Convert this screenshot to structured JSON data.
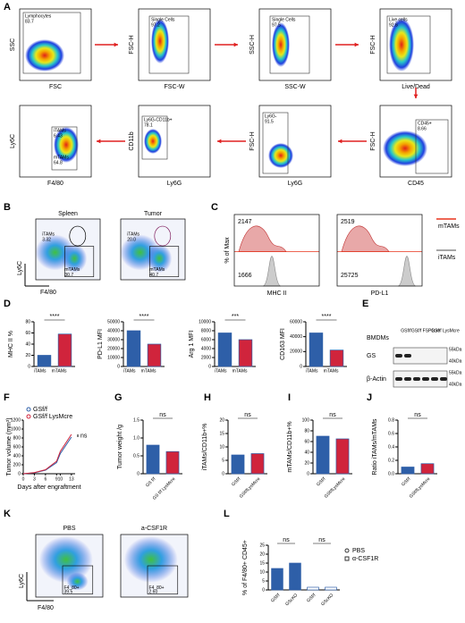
{
  "panels": [
    "A",
    "B",
    "C",
    "D",
    "E",
    "F",
    "G",
    "H",
    "I",
    "J",
    "K",
    "L"
  ],
  "flow_a": [
    {
      "x_label": "FSC",
      "y_label": "SSC",
      "gates": [
        {
          "name": "Lymphocytes",
          "value": "83.7"
        }
      ]
    },
    {
      "x_label": "FSC-W",
      "y_label": "FSC-H",
      "gates": [
        {
          "name": "Single Cells",
          "value": "97.2"
        }
      ]
    },
    {
      "x_label": "SSC-W",
      "y_label": "SSC-H",
      "gates": [
        {
          "name": "Single Cells",
          "value": "97.5"
        }
      ]
    },
    {
      "x_label": "Live/Dead",
      "y_label": "FSC-H",
      "gates": [
        {
          "name": "Live cells",
          "value": "92.6"
        }
      ]
    },
    {
      "x_label": "CD45",
      "y_label": "FSC-H",
      "gates": [
        {
          "name": "CD45+",
          "value": "8.66"
        }
      ]
    },
    {
      "x_label": "Ly6G",
      "y_label": "FSC-H",
      "gates": [
        {
          "name": "Ly6G-",
          "value": "91.5"
        }
      ]
    },
    {
      "x_label": "Ly6G",
      "y_label": "CD11b",
      "gates": [
        {
          "name": "Ly6G-CD11b+",
          "value": "78.1"
        }
      ]
    },
    {
      "x_label": "F4/80",
      "y_label": "Ly6C",
      "gates": [
        {
          "name": "iTAMs",
          "value": "6.43"
        },
        {
          "name": "mTAMs",
          "value": "64.8"
        }
      ]
    }
  ],
  "flow_b": {
    "x_label": "F4/80",
    "y_label": "Ly6C",
    "plots": [
      {
        "title": "Spleen",
        "gates": [
          {
            "name": "iTAMs",
            "value": "3.32"
          },
          {
            "name": "mTAMs",
            "value": "30.7"
          }
        ]
      },
      {
        "title": "Tumor",
        "gates": [
          {
            "name": "iTAMs",
            "value": "20.0"
          },
          {
            "name": "mTAMs",
            "value": "40.7"
          }
        ]
      }
    ]
  },
  "histograms": {
    "y_label": "% of Max",
    "legend": [
      {
        "name": "mTAMs",
        "color": "#e8341c"
      },
      {
        "name": "iTAMs",
        "color": "#888888"
      }
    ],
    "plots": [
      {
        "x_label": "MHC II",
        "top_value": "2147",
        "bottom_value": "1666"
      },
      {
        "x_label": "PD-L1",
        "top_value": "2519",
        "bottom_value": "25725"
      }
    ]
  },
  "bar_charts": [
    {
      "type": "bar",
      "y_label": "MHC II %",
      "categories": [
        "iTAMs",
        "mTAMs"
      ],
      "values": [
        20,
        58
      ],
      "colors": [
        "#2e5fa8",
        "#d0243c"
      ],
      "ylim": [
        0,
        80
      ],
      "yticks": [
        0,
        20,
        40,
        60,
        80
      ],
      "significance": [
        "****"
      ]
    },
    {
      "type": "bar",
      "y_label": "PD-L1 MFI",
      "categories": [
        "iTAMs",
        "mTAMs"
      ],
      "values": [
        40000,
        25000
      ],
      "colors": [
        "#2e5fa8",
        "#d0243c"
      ],
      "ylim": [
        0,
        50000
      ],
      "yticks": [
        0,
        10000,
        20000,
        30000,
        40000,
        50000
      ],
      "significance": [
        "****"
      ]
    },
    {
      "type": "bar",
      "y_label": "Arg 1 MFI",
      "categories": [
        "iTAMs",
        "mTAMs"
      ],
      "values": [
        7500,
        6000
      ],
      "colors": [
        "#2e5fa8",
        "#d0243c"
      ],
      "ylim": [
        0,
        10000
      ],
      "yticks": [
        0,
        2000,
        4000,
        6000,
        8000,
        10000
      ],
      "significance": [
        "***"
      ]
    },
    {
      "type": "bar",
      "y_label": "CD163 MFI",
      "categories": [
        "iTAMs",
        "mTAMs"
      ],
      "values": [
        45000,
        22000
      ],
      "colors": [
        "#2e5fa8",
        "#d0243c"
      ],
      "ylim": [
        0,
        60000
      ],
      "yticks": [
        0,
        20000,
        40000,
        60000
      ],
      "significance": [
        "****"
      ]
    },
    {
      "type": "bar",
      "y_label": "Tumor weight /g",
      "categories": [
        "GS f/f",
        "GS f/f LysMcre"
      ],
      "values": [
        0.8,
        0.62
      ],
      "colors": [
        "#2e5fa8",
        "#d0243c"
      ],
      "ylim": [
        0,
        1.5
      ],
      "yticks": [
        0,
        0.5,
        {
          "value": 1,
          "label": "1.0"
        },
        1.5
      ],
      "significance": [
        "ns"
      ]
    },
    {
      "type": "bar",
      "y_label": "iTAMs/CD11b+%",
      "categories": [
        "GSf/f",
        "GSf/fLysMcre"
      ],
      "values": [
        7,
        7.5
      ],
      "colors": [
        "#2e5fa8",
        "#d0243c"
      ],
      "ylim": [
        0,
        20
      ],
      "yticks": [
        0,
        5,
        10,
        15,
        20
      ],
      "significance": [
        "ns"
      ]
    },
    {
      "type": "bar",
      "y_label": "mTAMs/CD11b+%",
      "categories": [
        "GSf/f",
        "GSf/fLysMcre"
      ],
      "values": [
        70,
        65
      ],
      "colors": [
        "#2e5fa8",
        "#d0243c"
      ],
      "ylim": [
        0,
        100
      ],
      "yticks": [
        0,
        20,
        40,
        60,
        80,
        100
      ],
      "significance": [
        "ns"
      ]
    },
    {
      "type": "bar",
      "y_label": "Ratio iTAMs/mTAMs",
      "categories": [
        "GSf/f",
        "GSf/fLysMcre"
      ],
      "values": [
        0.1,
        0.15
      ],
      "colors": [
        "#2e5fa8",
        "#d0243c"
      ],
      "ylim": [
        0,
        0.8
      ],
      "yticks": [
        {
          "value": 0,
          "label": "0.0"
        },
        0.2,
        0.4,
        0.6,
        0.8
      ],
      "significance": [
        "ns"
      ]
    },
    {
      "type": "bar",
      "y_label": "% of F4/80+ CD45+",
      "categories": [
        "GSf/f",
        "GScKO",
        "GSf/f",
        "GScKO"
      ],
      "values": [
        12,
        15,
        1.5,
        1.5
      ],
      "colors": [
        "#2e5fa8",
        "#2e5fa8",
        "#ffffff",
        "#ffffff"
      ],
      "ylim": [
        0,
        25
      ],
      "yticks": [
        0,
        5,
        10,
        15,
        20,
        25
      ],
      "significance": [
        "ns",
        "ns"
      ],
      "legend": [
        "PBS",
        "α-CSF1R"
      ]
    }
  ],
  "line_chart": {
    "type": "line",
    "y_label": "Tumor volume (mm³)",
    "x_label": "Days after engraftment",
    "x": [
      0,
      3,
      6,
      9,
      10,
      13
    ],
    "xlim": [
      0,
      14
    ],
    "xticks": [
      0,
      3,
      6,
      9,
      10,
      13
    ],
    "ylim": [
      0,
      1200
    ],
    "yticks": [
      0,
      200,
      400,
      600,
      800,
      1000,
      1200
    ],
    "series": [
      {
        "name": "GSf/f",
        "color": "#2e5fa8",
        "values": [
          0,
          20,
          80,
          250,
          450,
          820
        ]
      },
      {
        "name": "GSf/f LysMcre",
        "color": "#d0243c",
        "values": [
          0,
          25,
          90,
          280,
          500,
          880
        ]
      }
    ],
    "significance": "ns"
  },
  "blot": {
    "title": "BMDMs",
    "lanes": [
      "GSf/f",
      "GSf/f FSP1cre",
      "GSf/f LysMcre"
    ],
    "rows": [
      "GS",
      "β-Actin"
    ],
    "markers": [
      "55kDa",
      "40kDa",
      "55kDa",
      "40kDa"
    ]
  },
  "flow_k": {
    "x_label": "F4/80",
    "y_label": "Ly6C",
    "plots": [
      {
        "title": "PBS",
        "gate": {
          "name": "F4_80+",
          "value": "39.5"
        }
      },
      {
        "title": "a-CSF1R",
        "gate": {
          "name": "F4_80+",
          "value": "2.60"
        }
      }
    ]
  }
}
